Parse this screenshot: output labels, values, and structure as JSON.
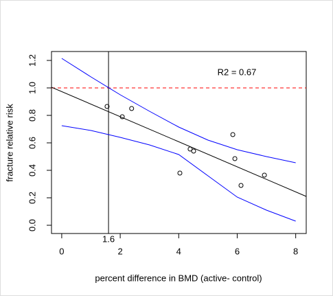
{
  "chart_data": {
    "type": "scatter",
    "x_label": "percent difference in BMD (active- control)",
    "y_label": "fracture relative risk",
    "annotation": "R2 = 0.67",
    "xlim": [
      -0.35,
      8.36
    ],
    "ylim": [
      -0.06,
      1.265
    ],
    "xticks": [
      0,
      2,
      4,
      6,
      8
    ],
    "yticks": [
      {
        "value": 0,
        "label": "0.0"
      },
      {
        "value": 0.2,
        "label": "0.2"
      },
      {
        "value": 0.4,
        "label": "0.4"
      },
      {
        "value": 0.6,
        "label": "0.6"
      },
      {
        "value": 0.8,
        "label": "0.8"
      },
      {
        "value": 1,
        "label": "1.0"
      },
      {
        "value": 1.2,
        "label": "1.2"
      }
    ],
    "series": [
      {
        "mark": "point",
        "color": "#000000",
        "x": [
          1.55,
          2.07,
          2.39,
          4.04,
          4.39,
          4.51,
          5.85,
          5.92,
          6.13,
          6.93
        ],
        "values": [
          0.865,
          0.79,
          0.85,
          0.38,
          0.555,
          0.54,
          0.66,
          0.485,
          0.29,
          0.365
        ]
      },
      {
        "mark": "line",
        "color": "#000000",
        "x": [
          -0.35,
          8.36
        ],
        "values": [
          1.005,
          0.21
        ]
      },
      {
        "mark": "line",
        "color": "#0000ff",
        "x": [
          0,
          1,
          2,
          3,
          4,
          5,
          6,
          7,
          8
        ],
        "values": [
          1.215,
          1.08,
          0.95,
          0.83,
          0.715,
          0.62,
          0.55,
          0.5,
          0.455
        ]
      },
      {
        "mark": "line",
        "color": "#0000ff",
        "x": [
          0,
          1,
          2,
          3,
          4,
          5,
          6,
          7,
          8
        ],
        "values": [
          0.725,
          0.69,
          0.64,
          0.585,
          0.515,
          0.36,
          0.205,
          0.11,
          0.03
        ]
      }
    ],
    "hlines": [
      {
        "y": 1,
        "color": "#ff0000",
        "dashed": true
      }
    ],
    "vlines": [
      {
        "x": 1.6,
        "color": "#000000"
      }
    ]
  }
}
